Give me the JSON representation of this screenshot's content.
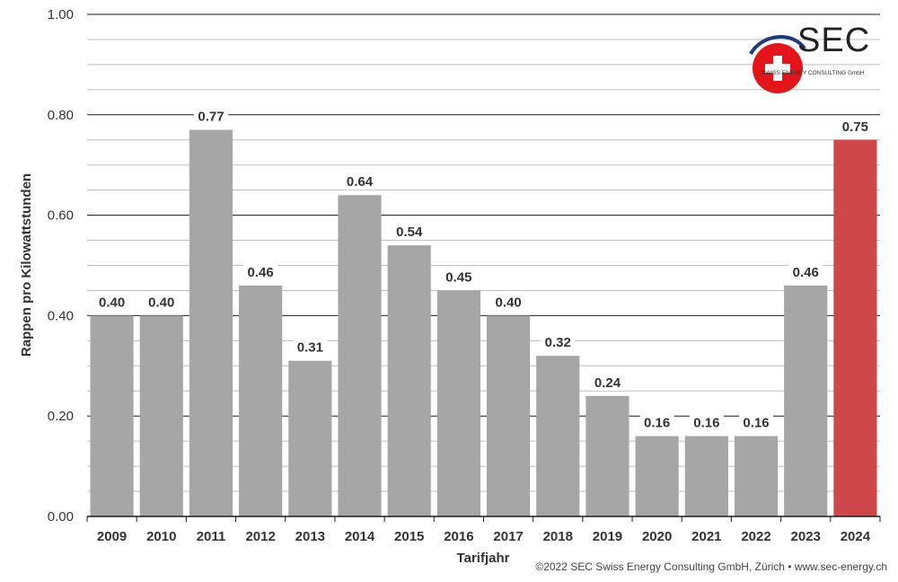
{
  "chart_data": {
    "type": "bar",
    "categories": [
      "2009",
      "2010",
      "2011",
      "2012",
      "2013",
      "2014",
      "2015",
      "2016",
      "2017",
      "2018",
      "2019",
      "2020",
      "2021",
      "2022",
      "2023",
      "2024"
    ],
    "values": [
      0.4,
      0.4,
      0.77,
      0.46,
      0.31,
      0.64,
      0.54,
      0.45,
      0.4,
      0.32,
      0.24,
      0.16,
      0.16,
      0.16,
      0.46,
      0.75
    ],
    "value_labels": [
      "0.40",
      "0.40",
      "0.77",
      "0.46",
      "0.31",
      "0.64",
      "0.54",
      "0.45",
      "0.40",
      "0.32",
      "0.24",
      "0.16",
      "0.16",
      "0.16",
      "0.46",
      "0.75"
    ],
    "title": "",
    "xlabel": "Tarifjahr",
    "ylabel": "Rappen pro Kilowattstunden",
    "ylim": [
      0,
      1.0
    ],
    "yticks": [
      0,
      0.2,
      0.4,
      0.6,
      0.8,
      1.0
    ],
    "ytick_labels": [
      "0.00",
      "0.20",
      "0.40",
      "0.60",
      "0.80",
      "1.00"
    ],
    "minor_grid_step": 0.05,
    "grid": true,
    "colors": {
      "bar": "#a6a6a6",
      "highlight": "#d0474b",
      "highlight_index": 15,
      "major_grid": "#1a1a1a",
      "minor_grid": "#bdbdbd"
    }
  },
  "logo": {
    "text": "SEC",
    "subtitle": "SWISS ENERGY CONSULTING GmbH"
  },
  "footer": {
    "copyright": "©2022 SEC Swiss Energy Consulting GmbH, Zürich • www.sec-energy.ch"
  }
}
